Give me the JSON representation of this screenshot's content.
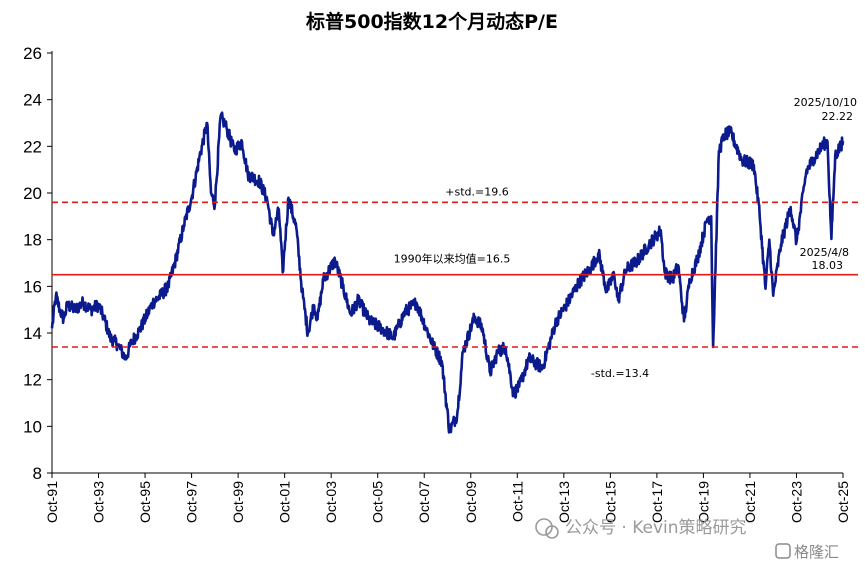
{
  "chart_data": {
    "type": "line",
    "title": "标普500指数12个月动态P/E",
    "ylim": [
      8,
      26
    ],
    "yticks": [
      8,
      10,
      12,
      14,
      16,
      18,
      20,
      22,
      24,
      26
    ],
    "xlim": [
      "1991-10",
      "2025-10"
    ],
    "xticks": [
      "Oct-91",
      "Oct-93",
      "Oct-95",
      "Oct-97",
      "Oct-99",
      "Oct-01",
      "Oct-03",
      "Oct-05",
      "Oct-07",
      "Oct-09",
      "Oct-11",
      "Oct-13",
      "Oct-15",
      "Oct-17",
      "Oct-19",
      "Oct-21",
      "Oct-23",
      "Oct-25"
    ],
    "grid": false,
    "series": [
      {
        "color": "#0b1a8c",
        "points": [
          [
            "1991-10",
            14.2
          ],
          [
            "1991-12",
            15.6
          ],
          [
            "1992-02",
            15.0
          ],
          [
            "1992-04",
            14.6
          ],
          [
            "1992-06",
            15.2
          ],
          [
            "1992-10",
            15.0
          ],
          [
            "1993-02",
            15.3
          ],
          [
            "1993-06",
            15.0
          ],
          [
            "1993-10",
            15.2
          ],
          [
            "1994-01",
            14.6
          ],
          [
            "1994-04",
            13.8
          ],
          [
            "1994-08",
            13.5
          ],
          [
            "1994-12",
            12.9
          ],
          [
            "1995-03",
            13.6
          ],
          [
            "1995-07",
            14.1
          ],
          [
            "1995-10",
            14.6
          ],
          [
            "1996-02",
            15.3
          ],
          [
            "1996-06",
            15.6
          ],
          [
            "1996-10",
            16.0
          ],
          [
            "1997-02",
            17.2
          ],
          [
            "1997-06",
            18.6
          ],
          [
            "1997-10",
            19.8
          ],
          [
            "1998-02",
            21.5
          ],
          [
            "1998-06",
            23.0
          ],
          [
            "1998-08",
            20.0
          ],
          [
            "1998-10",
            19.5
          ],
          [
            "1999-01",
            23.3
          ],
          [
            "1999-04",
            22.8
          ],
          [
            "1999-08",
            21.8
          ],
          [
            "1999-12",
            22.2
          ],
          [
            "2000-03",
            20.8
          ],
          [
            "2000-09",
            20.5
          ],
          [
            "2001-01",
            19.7
          ],
          [
            "2001-04",
            18.2
          ],
          [
            "2001-07",
            19.3
          ],
          [
            "2001-09",
            16.6
          ],
          [
            "2001-12",
            19.8
          ],
          [
            "2002-04",
            18.5
          ],
          [
            "2002-07",
            15.8
          ],
          [
            "2002-10",
            14.0
          ],
          [
            "2003-01",
            15.2
          ],
          [
            "2003-03",
            14.6
          ],
          [
            "2003-06",
            16.3
          ],
          [
            "2003-12",
            17.1
          ],
          [
            "2004-04",
            16.0
          ],
          [
            "2004-08",
            14.8
          ],
          [
            "2004-12",
            15.4
          ],
          [
            "2005-06",
            14.5
          ],
          [
            "2005-12",
            14.2
          ],
          [
            "2006-06",
            13.8
          ],
          [
            "2006-12",
            14.9
          ],
          [
            "2007-06",
            15.3
          ],
          [
            "2007-11",
            14.2
          ],
          [
            "2008-03",
            13.4
          ],
          [
            "2008-07",
            12.8
          ],
          [
            "2008-11",
            9.8
          ],
          [
            "2009-03",
            10.5
          ],
          [
            "2009-06",
            13.2
          ],
          [
            "2009-12",
            14.7
          ],
          [
            "2010-04",
            14.2
          ],
          [
            "2010-08",
            12.3
          ],
          [
            "2010-12",
            13.2
          ],
          [
            "2011-04",
            13.4
          ],
          [
            "2011-08",
            11.4
          ],
          [
            "2011-11",
            11.7
          ],
          [
            "2012-04",
            12.9
          ],
          [
            "2012-11",
            12.5
          ],
          [
            "2013-06",
            14.5
          ],
          [
            "2013-12",
            15.3
          ],
          [
            "2014-06",
            16.2
          ],
          [
            "2014-12",
            16.8
          ],
          [
            "2015-04",
            17.4
          ],
          [
            "2015-08",
            15.8
          ],
          [
            "2015-12",
            16.5
          ],
          [
            "2016-02",
            15.4
          ],
          [
            "2016-06",
            16.7
          ],
          [
            "2016-12",
            17.1
          ],
          [
            "2017-06",
            17.8
          ],
          [
            "2017-12",
            18.4
          ],
          [
            "2018-02",
            16.6
          ],
          [
            "2018-06",
            16.3
          ],
          [
            "2018-09",
            16.9
          ],
          [
            "2018-12",
            14.5
          ],
          [
            "2019-03",
            16.3
          ],
          [
            "2019-07",
            17.2
          ],
          [
            "2019-12",
            18.9
          ],
          [
            "2020-02",
            19.0
          ],
          [
            "2020-03",
            13.4
          ],
          [
            "2020-06",
            21.8
          ],
          [
            "2020-09",
            22.5
          ],
          [
            "2020-12",
            22.6
          ],
          [
            "2021-06",
            21.4
          ],
          [
            "2021-12",
            21.2
          ],
          [
            "2022-03",
            19.1
          ],
          [
            "2022-06",
            15.9
          ],
          [
            "2022-08",
            18.0
          ],
          [
            "2022-10",
            15.6
          ],
          [
            "2023-02",
            17.8
          ],
          [
            "2023-07",
            19.4
          ],
          [
            "2023-10",
            17.9
          ],
          [
            "2024-03",
            20.9
          ],
          [
            "2024-07",
            21.5
          ],
          [
            "2024-12",
            22.1
          ],
          [
            "2025-02",
            22.2
          ],
          [
            "2025-04",
            18.03
          ],
          [
            "2025-06",
            21.6
          ],
          [
            "2025-10",
            22.22
          ]
        ]
      }
    ],
    "reference_lines": [
      {
        "value": 19.6,
        "label": "+std.=19.6",
        "style": "dashed",
        "color": "#e31a1c"
      },
      {
        "value": 16.5,
        "label": "1990年以来均值=16.5",
        "style": "solid",
        "color": "#e31a1c"
      },
      {
        "value": 13.4,
        "label": "-std.=13.4",
        "style": "dashed",
        "color": "#e31a1c"
      }
    ],
    "annotations": [
      {
        "date": "2025/10/10",
        "value": "22.22"
      },
      {
        "date": "2025/4/8",
        "value": "18.03"
      }
    ]
  },
  "watermark": {
    "text": "公众号 · Kevin策略研究",
    "brand": "格隆汇"
  }
}
